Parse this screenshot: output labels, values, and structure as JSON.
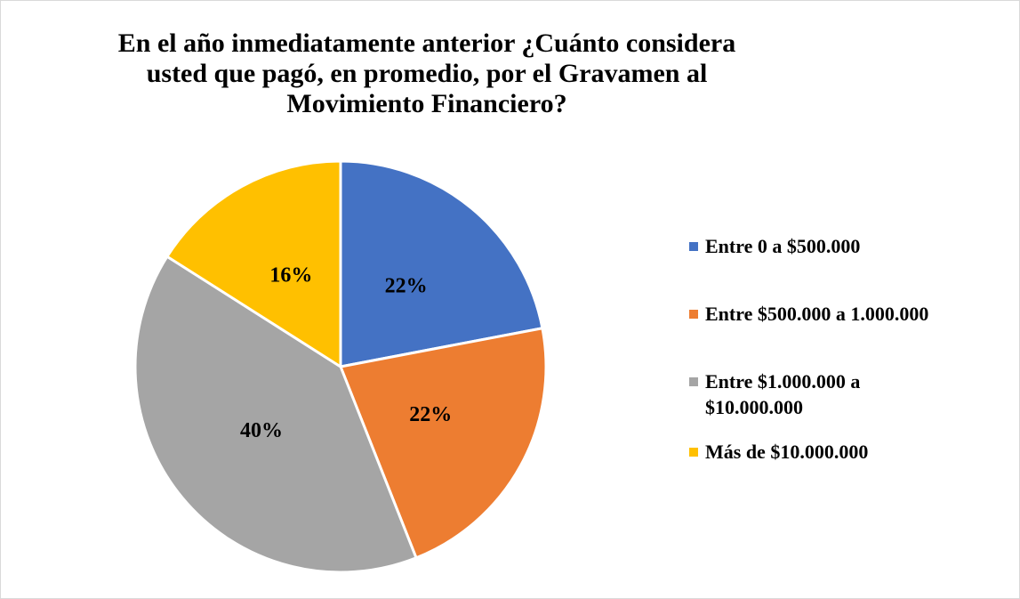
{
  "chart_data": {
    "type": "pie",
    "title": "En el año inmediatamente anterior ¿Cuánto considera usted que pagó, en promedio, por el Gravamen al Movimiento Financiero?",
    "categories": [
      "Entre 0 a $500.000",
      "Entre $500.000 a 1.000.000",
      "Entre $1.000.000 a $10.000.000",
      "Más de $10.000.000"
    ],
    "values": [
      22,
      22,
      40,
      16
    ],
    "value_labels": [
      "22%",
      "22%",
      "40%",
      "16%"
    ],
    "colors": [
      "#4472c4",
      "#ed7d31",
      "#a5a5a5",
      "#ffc000"
    ],
    "legend": "right"
  }
}
